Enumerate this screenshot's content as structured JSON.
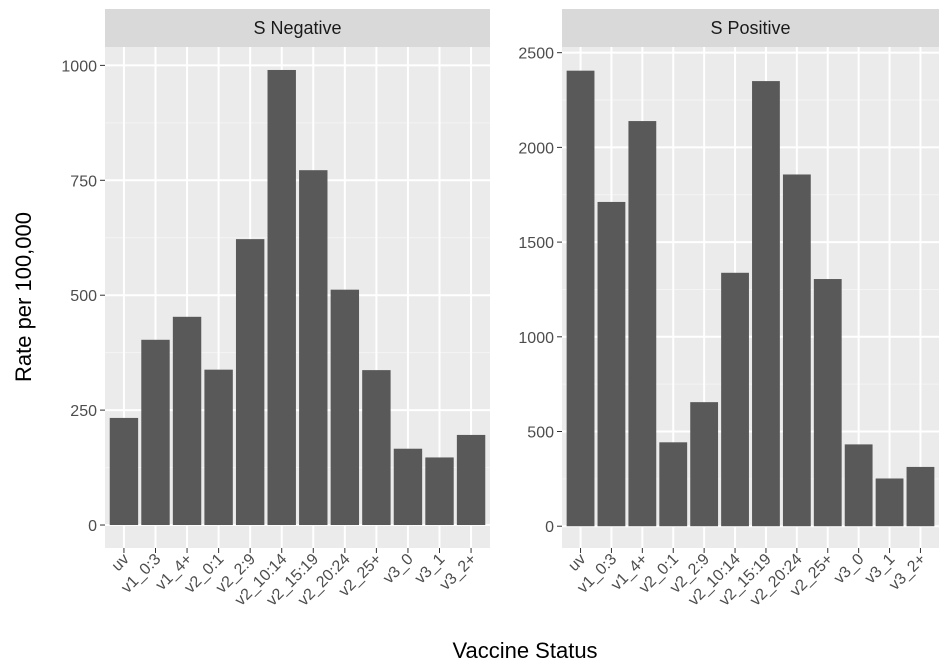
{
  "axes": {
    "xlabel": "Vaccine Status",
    "ylabel": "Rate per 100,000"
  },
  "colors": {
    "bar": "#595959",
    "panel_background": "#ebebeb",
    "strip_background": "#d9d9d9",
    "grid_major": "#ffffff",
    "grid_minor": "#f4f4f4"
  },
  "chart_data": [
    {
      "type": "bar",
      "title": "S Negative",
      "categories": [
        "uv",
        "v1_0:3",
        "v1_4+",
        "v2_0:1",
        "v2_2:9",
        "v2_10:14",
        "v2_15:19",
        "v2_20:24",
        "v2_25+",
        "v3_0",
        "v3_1",
        "v3_2+"
      ],
      "values": [
        233,
        403,
        453,
        338,
        622,
        990,
        772,
        512,
        337,
        166,
        147,
        196
      ],
      "yticks": [
        0,
        250,
        500,
        750,
        1000
      ],
      "ytick_labels": [
        "0",
        "250",
        "500",
        "750",
        "1000"
      ],
      "ylim": [
        -50,
        1040
      ],
      "xlabel": "Vaccine Status",
      "ylabel": "Rate per 100,000",
      "grid": true,
      "legend": "none"
    },
    {
      "type": "bar",
      "title": "S Positive",
      "categories": [
        "uv",
        "v1_0:3",
        "v1_4+",
        "v2_0:1",
        "v2_2:9",
        "v2_10:14",
        "v2_15:19",
        "v2_20:24",
        "v2_25+",
        "v3_0",
        "v3_1",
        "v3_2+"
      ],
      "values": [
        2405,
        1712,
        2139,
        443,
        655,
        1338,
        2350,
        1857,
        1305,
        432,
        252,
        313
      ],
      "yticks": [
        0,
        500,
        1000,
        1500,
        2000,
        2500
      ],
      "ytick_labels": [
        "0",
        "500",
        "1000",
        "1500",
        "2000",
        "2500"
      ],
      "ylim": [
        -115,
        2530
      ],
      "xlabel": "Vaccine Status",
      "ylabel": "Rate per 100,000",
      "grid": true,
      "legend": "none"
    }
  ]
}
